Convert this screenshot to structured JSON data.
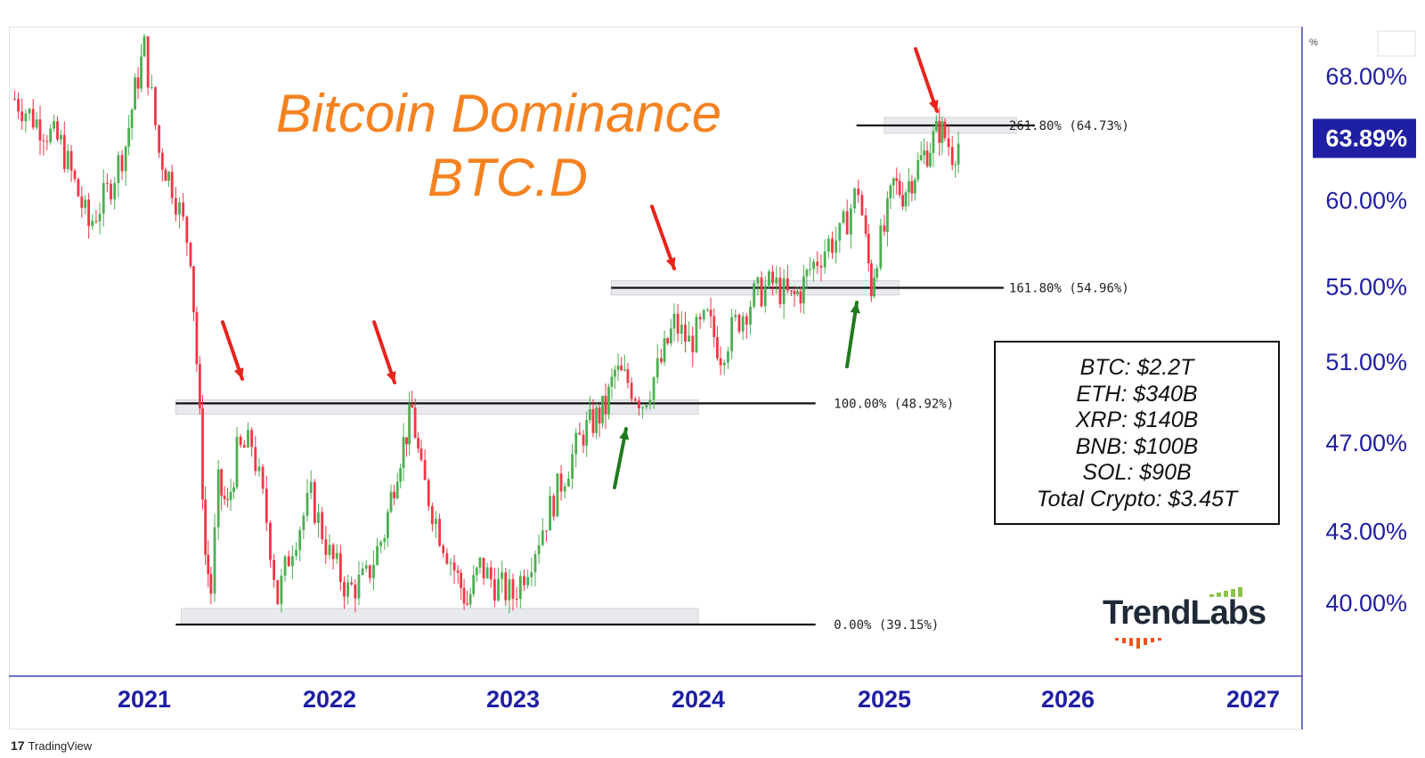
{
  "chart_title": {
    "line1": "Bitcoin Dominance",
    "line2": "BTC.D"
  },
  "price_axis": {
    "unit_label": "%",
    "ticks": [
      "68.00%",
      "60.00%",
      "55.00%",
      "51.00%",
      "47.00%",
      "43.00%",
      "40.00%"
    ],
    "current_label": "63.89%",
    "current_color": "#1f1fa3",
    "axis_label_color": "#1f1fa3"
  },
  "time_axis": {
    "ticks": [
      "2021",
      "2022",
      "2023",
      "2024",
      "2025",
      "2026",
      "2027"
    ],
    "label_color": "#1f1fa3"
  },
  "fib_levels": [
    {
      "label": "261.80% (64.73%)",
      "value": 64.73
    },
    {
      "label": "161.80% (54.96%)",
      "value": 54.96
    },
    {
      "label": "100.00% (48.92%)",
      "value": 48.92
    },
    {
      "label": "0.00% (39.15%)",
      "value": 39.15
    }
  ],
  "info_box": {
    "lines": [
      "BTC: $2.2T",
      "ETH: $340B",
      "XRP: $140B",
      "BNB: $100B",
      "SOL: $90B",
      "Total Crypto: $3.45T"
    ]
  },
  "brand": {
    "name": "TrendLabs"
  },
  "footer": {
    "logo_mark": "17",
    "logo_text": "TradingView"
  },
  "colors": {
    "title": "#f58220",
    "up": "#4caf50",
    "down": "#f23645",
    "red_arrow": "#e8231b",
    "green_arrow": "#1f7a1f",
    "axis": "#1f1fa3"
  },
  "chart_data": {
    "type": "candlestick",
    "symbol": "BTC.D",
    "y_axis_scale": "log",
    "ylim": [
      37.6,
      70
    ],
    "xlim": [
      2020.25,
      2027.1
    ],
    "current_value": 63.89,
    "weekly_close_series": [
      [
        2020.3,
        66.5
      ],
      [
        2020.4,
        65.2
      ],
      [
        2020.55,
        63.5
      ],
      [
        2020.7,
        58.5
      ],
      [
        2020.8,
        60.5
      ],
      [
        2020.9,
        63.5
      ],
      [
        2020.95,
        67.0
      ],
      [
        2021.0,
        70.0
      ],
      [
        2021.08,
        63.0
      ],
      [
        2021.15,
        61.0
      ],
      [
        2021.25,
        57.0
      ],
      [
        2021.3,
        48.0
      ],
      [
        2021.33,
        42.0
      ],
      [
        2021.36,
        40.5
      ],
      [
        2021.4,
        45.0
      ],
      [
        2021.45,
        44.0
      ],
      [
        2021.5,
        46.5
      ],
      [
        2021.58,
        47.0
      ],
      [
        2021.66,
        43.5
      ],
      [
        2021.72,
        40.2
      ],
      [
        2021.8,
        42.5
      ],
      [
        2021.9,
        44.5
      ],
      [
        2022.0,
        42.0
      ],
      [
        2022.1,
        40.5
      ],
      [
        2022.2,
        41.0
      ],
      [
        2022.3,
        43.0
      ],
      [
        2022.37,
        46.0
      ],
      [
        2022.42,
        47.5
      ],
      [
        2022.45,
        48.6
      ],
      [
        2022.5,
        45.5
      ],
      [
        2022.6,
        43.0
      ],
      [
        2022.7,
        41.0
      ],
      [
        2022.75,
        40.0
      ],
      [
        2022.82,
        41.5
      ],
      [
        2022.9,
        40.8
      ],
      [
        2023.0,
        40.3
      ],
      [
        2023.1,
        42.0
      ],
      [
        2023.2,
        44.0
      ],
      [
        2023.3,
        46.0
      ],
      [
        2023.38,
        47.5
      ],
      [
        2023.45,
        48.2
      ],
      [
        2023.5,
        48.7
      ],
      [
        2023.55,
        50.5
      ],
      [
        2023.62,
        50.0
      ],
      [
        2023.7,
        49.0
      ],
      [
        2023.8,
        51.0
      ],
      [
        2023.87,
        53.0
      ],
      [
        2023.95,
        52.0
      ],
      [
        2024.05,
        53.2
      ],
      [
        2024.12,
        51.5
      ],
      [
        2024.2,
        53.0
      ],
      [
        2024.3,
        54.5
      ],
      [
        2024.4,
        55.2
      ],
      [
        2024.5,
        54.3
      ],
      [
        2024.55,
        54.8
      ],
      [
        2024.6,
        56.0
      ],
      [
        2024.7,
        57.5
      ],
      [
        2024.76,
        57.8
      ],
      [
        2024.8,
        59.0
      ],
      [
        2024.86,
        60.8
      ],
      [
        2024.9,
        57.5
      ],
      [
        2024.93,
        55.0
      ],
      [
        2024.96,
        57.0
      ],
      [
        2025.0,
        58.2
      ],
      [
        2025.05,
        61.0
      ],
      [
        2025.1,
        60.5
      ],
      [
        2025.15,
        61.5
      ],
      [
        2025.2,
        62.5
      ],
      [
        2025.25,
        63.5
      ],
      [
        2025.3,
        64.5
      ],
      [
        2025.33,
        64.0
      ],
      [
        2025.37,
        63.0
      ],
      [
        2025.42,
        63.9
      ]
    ]
  }
}
